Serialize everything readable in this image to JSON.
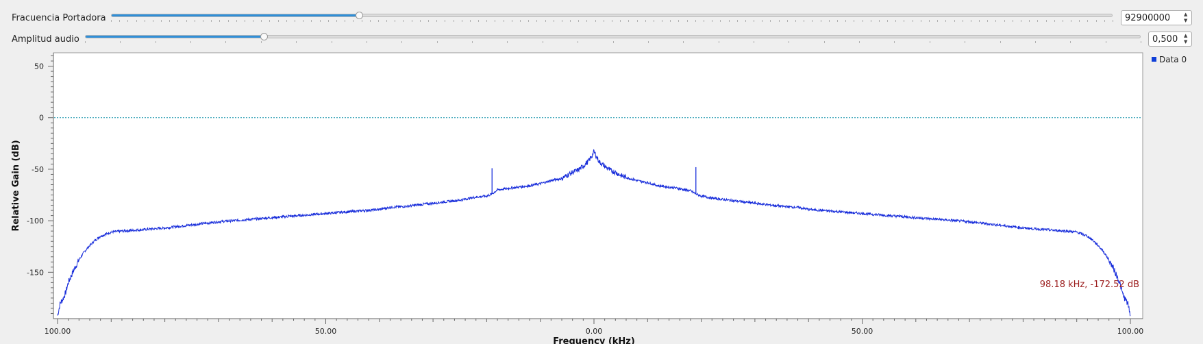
{
  "controls": {
    "carrier": {
      "label": "Fracuencia Portadora",
      "value": "92900000",
      "slider_fraction": 0.247
    },
    "audio": {
      "label": "Amplitud audio",
      "value": "0,500",
      "slider_fraction": 0.169
    }
  },
  "legend": {
    "label": "Data 0"
  },
  "marker": {
    "text": "98.18 kHz, -172.52 dB"
  },
  "colors": {
    "trace": "#1a2fdb",
    "reference_line": "#0f8fa8",
    "marker_text": "#9b1c1c",
    "slider_fill": "#2f8fd8"
  },
  "chart_data": {
    "type": "line",
    "title": "",
    "xlabel": "Frequency (kHz)",
    "ylabel": "Relative Gain (dB)",
    "xlim": [
      -100,
      100
    ],
    "ylim": [
      -195,
      63
    ],
    "x_tick_labels": [
      "100.00",
      "50.00",
      "0.00",
      "50.00",
      "100.00"
    ],
    "x_ticks": [
      -100,
      -50,
      0,
      50,
      100
    ],
    "y_ticks": [
      50,
      0,
      -50,
      -100,
      -150
    ],
    "y_tick_labels": [
      "50",
      "0",
      "-50",
      "-100",
      "-150"
    ],
    "reference_line": {
      "y": 0
    },
    "grid": false,
    "legend_position": "right",
    "series": [
      {
        "name": "Data 0",
        "x": [
          -100,
          -99.5,
          -99,
          -98.5,
          -98,
          -97,
          -96,
          -95,
          -94,
          -93,
          -92,
          -90,
          -88,
          -85,
          -80,
          -75,
          -70,
          -65,
          -60,
          -55,
          -50,
          -45,
          -40,
          -38,
          -35,
          -30,
          -25,
          -22,
          -20,
          -19,
          -18,
          -15,
          -12,
          -10,
          -8,
          -6,
          -5,
          -4,
          -3,
          -2,
          -1,
          -0.5,
          0,
          0.5,
          1,
          2,
          3,
          4,
          5,
          6,
          8,
          10,
          12,
          15,
          18,
          19,
          20,
          22,
          25,
          30,
          35,
          38,
          40,
          45,
          50,
          55,
          60,
          65,
          70,
          75,
          80,
          85,
          88,
          90,
          92,
          93,
          94,
          95,
          96,
          97,
          98,
          98.5,
          99,
          99.5,
          100
        ],
        "y": [
          -192,
          -180,
          -176,
          -170,
          -160,
          -148,
          -138,
          -130,
          -124,
          -119,
          -115,
          -111,
          -110,
          -109,
          -107,
          -104,
          -101,
          -99,
          -97,
          -95,
          -93,
          -91,
          -89,
          -87,
          -86,
          -83,
          -80,
          -77,
          -76,
          -74,
          -70,
          -68,
          -66,
          -64,
          -61,
          -59,
          -56,
          -53,
          -51,
          -47,
          -42,
          -38,
          -33,
          -38,
          -43,
          -47,
          -51,
          -53,
          -56,
          -58,
          -61,
          -63,
          -66,
          -68,
          -71,
          -74,
          -76,
          -78,
          -80,
          -83,
          -86,
          -87,
          -89,
          -91,
          -93,
          -95,
          -97,
          -99,
          -101,
          -104,
          -107,
          -109,
          -110,
          -111,
          -115,
          -119,
          -124,
          -130,
          -138,
          -148,
          -160,
          -170,
          -176,
          -180,
          -192
        ],
        "spikes": [
          {
            "x": -19,
            "y": -49
          },
          {
            "x": 19,
            "y": -48
          },
          {
            "x": -38,
            "y": -86
          },
          {
            "x": 38,
            "y": -86
          },
          {
            "x": -57,
            "y": -94
          },
          {
            "x": 57,
            "y": -94
          }
        ]
      }
    ]
  }
}
